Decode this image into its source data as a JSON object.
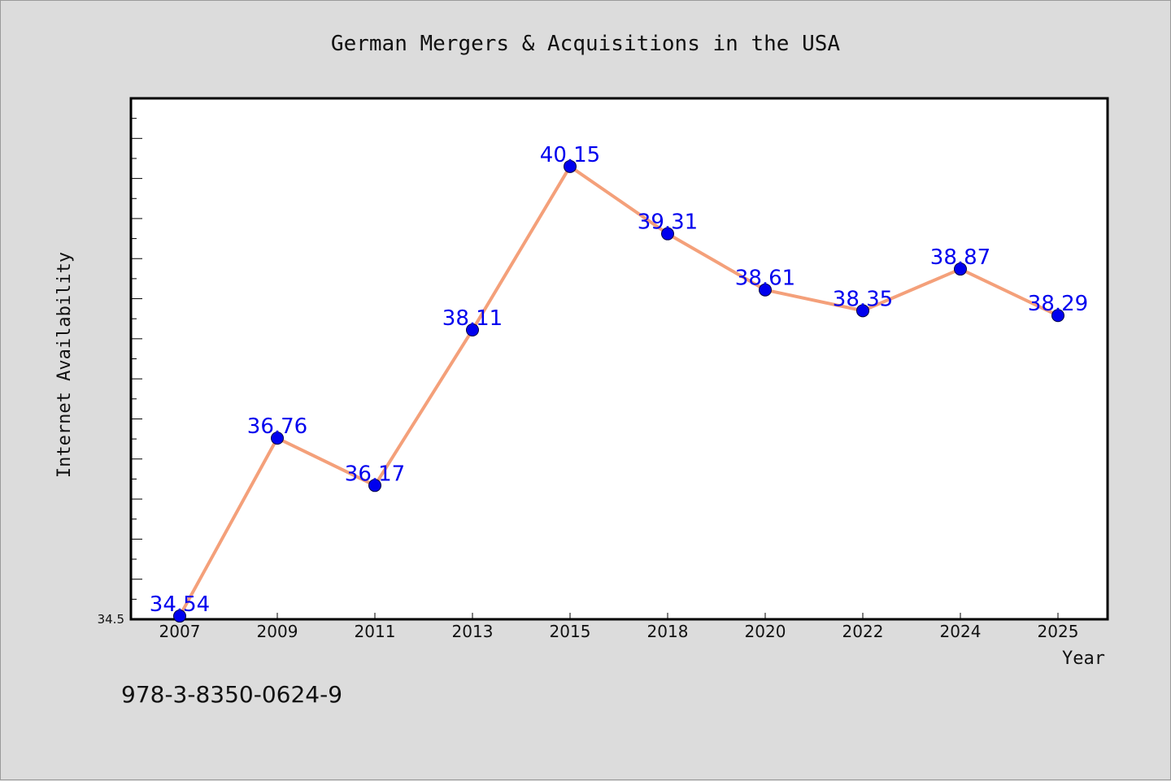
{
  "chart_data": {
    "type": "line",
    "title": "German Mergers & Acquisitions in the USA",
    "xlabel": "Year",
    "ylabel": "Internet Availability",
    "categories": [
      "2007",
      "2009",
      "2011",
      "2013",
      "2015",
      "2018",
      "2020",
      "2022",
      "2024",
      "2025"
    ],
    "series": [
      {
        "values": [
          34.54,
          36.76,
          36.17,
          38.11,
          40.15,
          39.31,
          38.61,
          38.35,
          38.87,
          38.29
        ],
        "labels": [
          "34.54",
          "36.76",
          "36.17",
          "38.11",
          "40.15",
          "39.31",
          "38.61",
          "38.35",
          "38.87",
          "38.29"
        ]
      }
    ],
    "ylim": [
      34.5,
      41.0
    ],
    "yticks_labeled": [
      "34.5"
    ],
    "grid": false,
    "legend": "none",
    "colors": {
      "line": "#f4a07a",
      "marker": "#0000ee",
      "label": "#0000ee",
      "plot_bg": "#ffffff",
      "page_bg": "#dcdcdc"
    }
  },
  "footer": {
    "isbn": "978-3-8350-0624-9"
  }
}
